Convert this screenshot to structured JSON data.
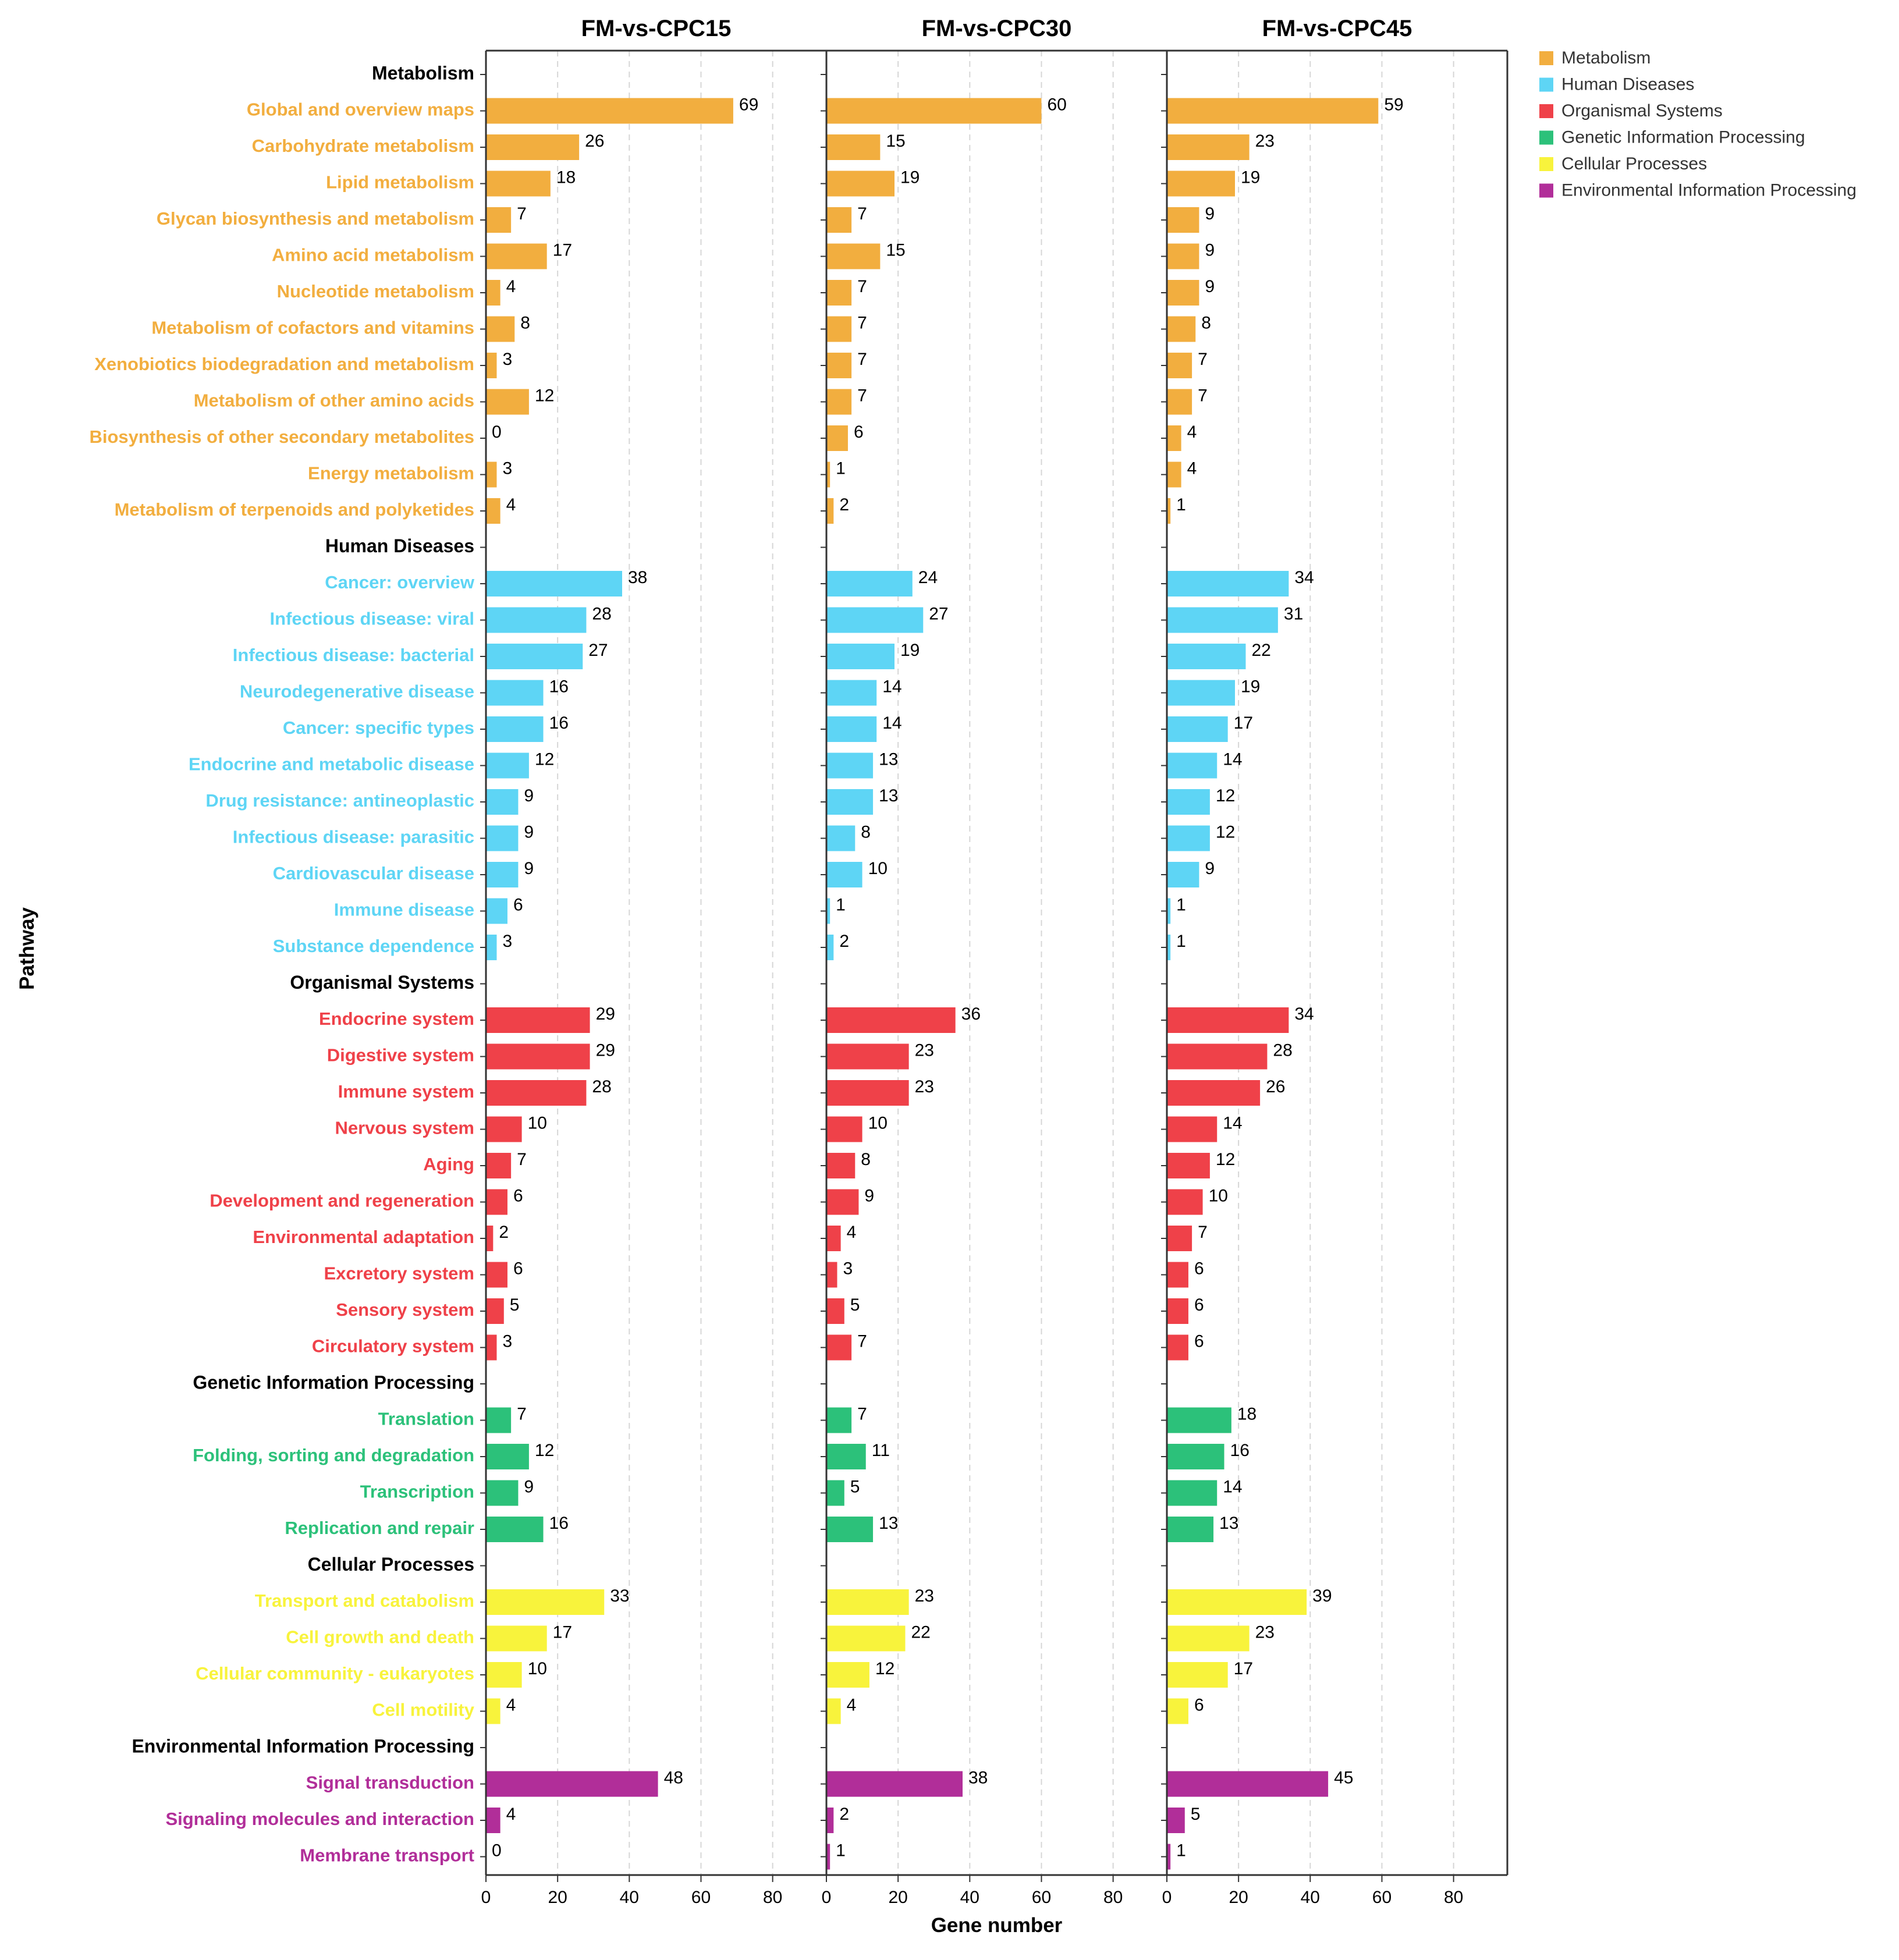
{
  "chart_data": {
    "type": "bar",
    "orientation": "horizontal",
    "xlabel": "Gene number",
    "ylabel": "Pathway",
    "xlim": [
      0,
      95
    ],
    "xticks": [
      0,
      20,
      40,
      60,
      80
    ],
    "grid": "vertical dashed",
    "legend_position": "top-right",
    "panels": [
      "FM-vs-CPC15",
      "FM-vs-CPC30",
      "FM-vs-CPC45"
    ],
    "groups": [
      {
        "name": "Metabolism",
        "color": "#F2AE3F",
        "categories": [
          {
            "name": "Global and overview maps",
            "values": [
              69,
              60,
              59
            ]
          },
          {
            "name": "Carbohydrate metabolism",
            "values": [
              26,
              15,
              23
            ]
          },
          {
            "name": "Lipid metabolism",
            "values": [
              18,
              19,
              19
            ]
          },
          {
            "name": "Glycan biosynthesis and metabolism",
            "values": [
              7,
              7,
              9
            ]
          },
          {
            "name": "Amino acid metabolism",
            "values": [
              17,
              15,
              9
            ]
          },
          {
            "name": "Nucleotide metabolism",
            "values": [
              4,
              7,
              9
            ]
          },
          {
            "name": "Metabolism of cofactors and vitamins",
            "values": [
              8,
              7,
              8
            ]
          },
          {
            "name": "Xenobiotics biodegradation and metabolism",
            "values": [
              3,
              7,
              7
            ]
          },
          {
            "name": "Metabolism of other amino acids",
            "values": [
              12,
              7,
              7
            ]
          },
          {
            "name": "Biosynthesis of other secondary metabolites",
            "values": [
              0,
              6,
              4
            ]
          },
          {
            "name": "Energy metabolism",
            "values": [
              3,
              1,
              4
            ]
          },
          {
            "name": "Metabolism of terpenoids and polyketides",
            "values": [
              4,
              2,
              1
            ]
          }
        ]
      },
      {
        "name": "Human Diseases",
        "color": "#5ED5F5",
        "categories": [
          {
            "name": "Cancer: overview",
            "values": [
              38,
              24,
              34
            ]
          },
          {
            "name": "Infectious disease: viral",
            "values": [
              28,
              27,
              31
            ]
          },
          {
            "name": "Infectious disease: bacterial",
            "values": [
              27,
              19,
              22
            ]
          },
          {
            "name": "Neurodegenerative disease",
            "values": [
              16,
              14,
              19
            ]
          },
          {
            "name": "Cancer: specific types",
            "values": [
              16,
              14,
              17
            ]
          },
          {
            "name": "Endocrine and metabolic disease",
            "values": [
              12,
              13,
              14
            ]
          },
          {
            "name": "Drug resistance: antineoplastic",
            "values": [
              9,
              13,
              12
            ]
          },
          {
            "name": "Infectious disease: parasitic",
            "values": [
              9,
              8,
              12
            ]
          },
          {
            "name": "Cardiovascular disease",
            "values": [
              9,
              10,
              9
            ]
          },
          {
            "name": "Immune disease",
            "values": [
              6,
              1,
              1
            ]
          },
          {
            "name": "Substance dependence",
            "values": [
              3,
              2,
              1
            ]
          }
        ]
      },
      {
        "name": "Organismal Systems",
        "color": "#EF4149",
        "categories": [
          {
            "name": "Endocrine system",
            "values": [
              29,
              36,
              34
            ]
          },
          {
            "name": "Digestive system",
            "values": [
              29,
              23,
              28
            ]
          },
          {
            "name": "Immune system",
            "values": [
              28,
              23,
              26
            ]
          },
          {
            "name": "Nervous system",
            "values": [
              10,
              10,
              14
            ]
          },
          {
            "name": "Aging",
            "values": [
              7,
              8,
              12
            ]
          },
          {
            "name": "Development and regeneration",
            "values": [
              6,
              9,
              10
            ]
          },
          {
            "name": "Environmental adaptation",
            "values": [
              2,
              4,
              7
            ]
          },
          {
            "name": "Excretory system",
            "values": [
              6,
              3,
              6
            ]
          },
          {
            "name": "Sensory system",
            "values": [
              5,
              5,
              6
            ]
          },
          {
            "name": "Circulatory system",
            "values": [
              3,
              7,
              6
            ]
          }
        ]
      },
      {
        "name": "Genetic Information Processing",
        "color": "#2CC17A",
        "categories": [
          {
            "name": "Translation",
            "values": [
              7,
              7,
              18
            ]
          },
          {
            "name": "Folding, sorting and degradation",
            "values": [
              12,
              11,
              16
            ]
          },
          {
            "name": "Transcription",
            "values": [
              9,
              5,
              14
            ]
          },
          {
            "name": "Replication and repair",
            "values": [
              16,
              13,
              13
            ]
          }
        ]
      },
      {
        "name": "Cellular Processes",
        "color": "#F8F33C",
        "categories": [
          {
            "name": "Transport and catabolism",
            "values": [
              33,
              23,
              39
            ]
          },
          {
            "name": "Cell growth and death",
            "values": [
              17,
              22,
              23
            ]
          },
          {
            "name": "Cellular community - eukaryotes",
            "values": [
              10,
              12,
              17
            ]
          },
          {
            "name": "Cell motility",
            "values": [
              4,
              4,
              6
            ]
          }
        ]
      },
      {
        "name": "Environmental Information Processing",
        "color": "#B12E99",
        "categories": [
          {
            "name": "Signal transduction",
            "values": [
              48,
              38,
              45
            ]
          },
          {
            "name": "Signaling molecules and interaction",
            "values": [
              4,
              2,
              5
            ]
          },
          {
            "name": "Membrane transport",
            "values": [
              0,
              1,
              1
            ]
          }
        ]
      }
    ]
  }
}
